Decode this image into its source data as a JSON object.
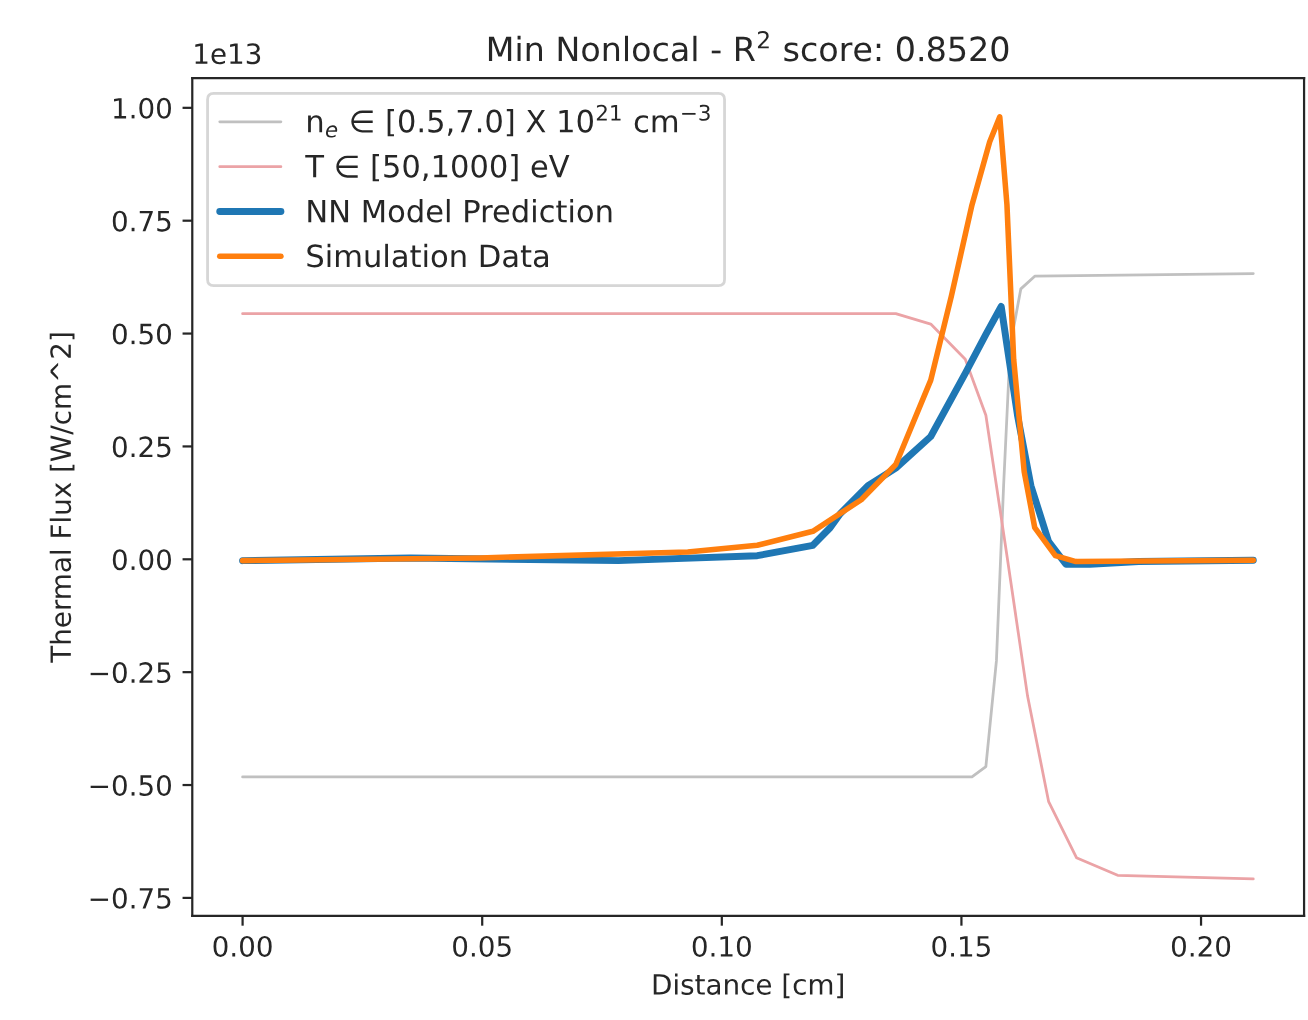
{
  "chart_data": {
    "type": "line",
    "title": "Min Nonlocal - R$^{2}$ score: 0.8520",
    "xlabel": "Distance [cm]",
    "ylabel": "Thermal Flux [W/cm^2]",
    "annotations": [
      "1e13"
    ],
    "series": [
      {
        "name": "n$_{e}$ ∈ [0.5,7.0] X 10$^{21}$ cm$^{−3}$",
        "color": "#c0c0c0",
        "x": [
          0,
          0.1522,
          0.1551,
          0.1573,
          0.1588,
          0.1602,
          0.1624,
          0.1653,
          0.2109
        ],
        "values": [
          -0.482,
          -0.482,
          -0.459,
          -0.225,
          0.163,
          0.474,
          0.599,
          0.627,
          0.633
        ]
      },
      {
        "name": "T ∈ [50,1000] eV",
        "color": "#eba3a6",
        "x": [
          0,
          0.1363,
          0.1436,
          0.1508,
          0.1551,
          0.1595,
          0.1638,
          0.1682,
          0.174,
          0.1826,
          0.2109
        ],
        "values": [
          0.544,
          0.544,
          0.521,
          0.443,
          0.319,
          0.008,
          -0.303,
          -0.537,
          -0.661,
          -0.7,
          -0.708
        ]
      },
      {
        "name": "NN Model Prediction",
        "color": "#1f77b4",
        "x": [
          0,
          0.035,
          0.0784,
          0.1074,
          0.119,
          0.1226,
          0.1247,
          0.1262,
          0.1305,
          0.1363,
          0.1436,
          0.1508,
          0.1551,
          0.1583,
          0.1595,
          0.1617,
          0.1645,
          0.1682,
          0.1718,
          0.1768,
          0.187,
          0.2109
        ],
        "values": [
          -0.003,
          0.003,
          -0.003,
          0.008,
          0.031,
          0.07,
          0.101,
          0.117,
          0.163,
          0.202,
          0.272,
          0.412,
          0.498,
          0.56,
          0.474,
          0.319,
          0.163,
          0.039,
          -0.011,
          -0.011,
          -0.005,
          -0.002
        ]
      },
      {
        "name": "Simulation Data",
        "color": "#ff7f0e",
        "x": [
          0,
          0.0495,
          0.0929,
          0.1074,
          0.119,
          0.1291,
          0.1363,
          0.1436,
          0.1479,
          0.1522,
          0.1559,
          0.158,
          0.1595,
          0.1609,
          0.1631,
          0.1653,
          0.1696,
          0.1739,
          0.2109
        ],
        "values": [
          -0.003,
          0.003,
          0.016,
          0.031,
          0.062,
          0.132,
          0.21,
          0.397,
          0.583,
          0.785,
          0.925,
          0.98,
          0.785,
          0.443,
          0.194,
          0.07,
          0.008,
          -0.005,
          -0.002
        ]
      }
    ],
    "xlim": [
      -0.0105,
      0.2215
    ],
    "xticks": [
      {
        "value": 0,
        "label": "0.00"
      },
      {
        "value": 0.05,
        "label": "0.05"
      },
      {
        "value": 0.1,
        "label": "0.10"
      },
      {
        "value": 0.15,
        "label": "0.15"
      },
      {
        "value": 0.2,
        "label": "0.20"
      }
    ],
    "ylim": [
      -0.79,
      1.066
    ],
    "yticks": [
      {
        "value": -0.75,
        "label": "−0.75"
      },
      {
        "value": -0.5,
        "label": "−0.50"
      },
      {
        "value": -0.25,
        "label": "−0.25"
      },
      {
        "value": 0,
        "label": "0.00"
      },
      {
        "value": 0.25,
        "label": "0.25"
      },
      {
        "value": 0.5,
        "label": "0.50"
      },
      {
        "value": 0.75,
        "label": "0.75"
      },
      {
        "value": 1,
        "label": "1.00"
      }
    ],
    "grid": false,
    "legend": "top left"
  }
}
